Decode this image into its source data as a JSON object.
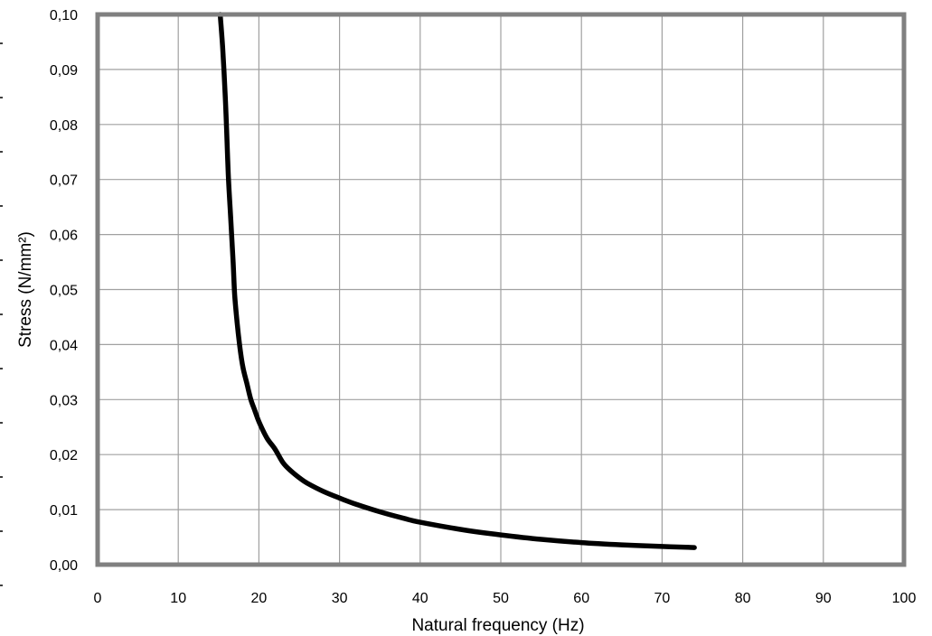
{
  "chart_data": {
    "type": "line",
    "title": "",
    "xlabel": "Natural frequency (Hz)",
    "ylabel": "Stress (N/mm²)",
    "xlim": [
      0,
      100
    ],
    "ylim": [
      0,
      0.1
    ],
    "grid": true,
    "legend": "none",
    "x_ticks": [
      "0",
      "10",
      "20",
      "30",
      "40",
      "50",
      "60",
      "70",
      "80",
      "90",
      "100"
    ],
    "y_ticks": [
      "0,00",
      "0,01",
      "0,02",
      "0,03",
      "0,04",
      "0,05",
      "0,06",
      "0,07",
      "0,08",
      "0,09",
      "0,10"
    ],
    "series": [
      {
        "x": [
          15.2,
          15.5,
          15.8,
          16.0,
          16.2,
          16.5,
          16.8,
          17.0,
          17.3,
          17.6,
          18.0,
          18.5,
          19.0,
          19.5,
          20.0,
          21.0,
          22.0,
          23.0,
          24.0,
          25.0,
          26.0,
          28.0,
          30.0,
          32.0,
          35.0,
          38.0,
          40.0,
          45.0,
          50.0,
          55.0,
          60.0,
          65.0,
          70.0,
          74.0
        ],
        "y": [
          0.1,
          0.094,
          0.086,
          0.079,
          0.071,
          0.063,
          0.055,
          0.049,
          0.044,
          0.04,
          0.036,
          0.033,
          0.03,
          0.028,
          0.026,
          0.023,
          0.021,
          0.0185,
          0.017,
          0.0158,
          0.0148,
          0.0133,
          0.0121,
          0.011,
          0.0096,
          0.0084,
          0.0077,
          0.0064,
          0.0054,
          0.0046,
          0.004,
          0.0036,
          0.0033,
          0.0031
        ],
        "color": "#000000"
      }
    ],
    "colors": {
      "frame": "#808080",
      "grid": "#a0a0a0",
      "line": "#000000"
    }
  }
}
